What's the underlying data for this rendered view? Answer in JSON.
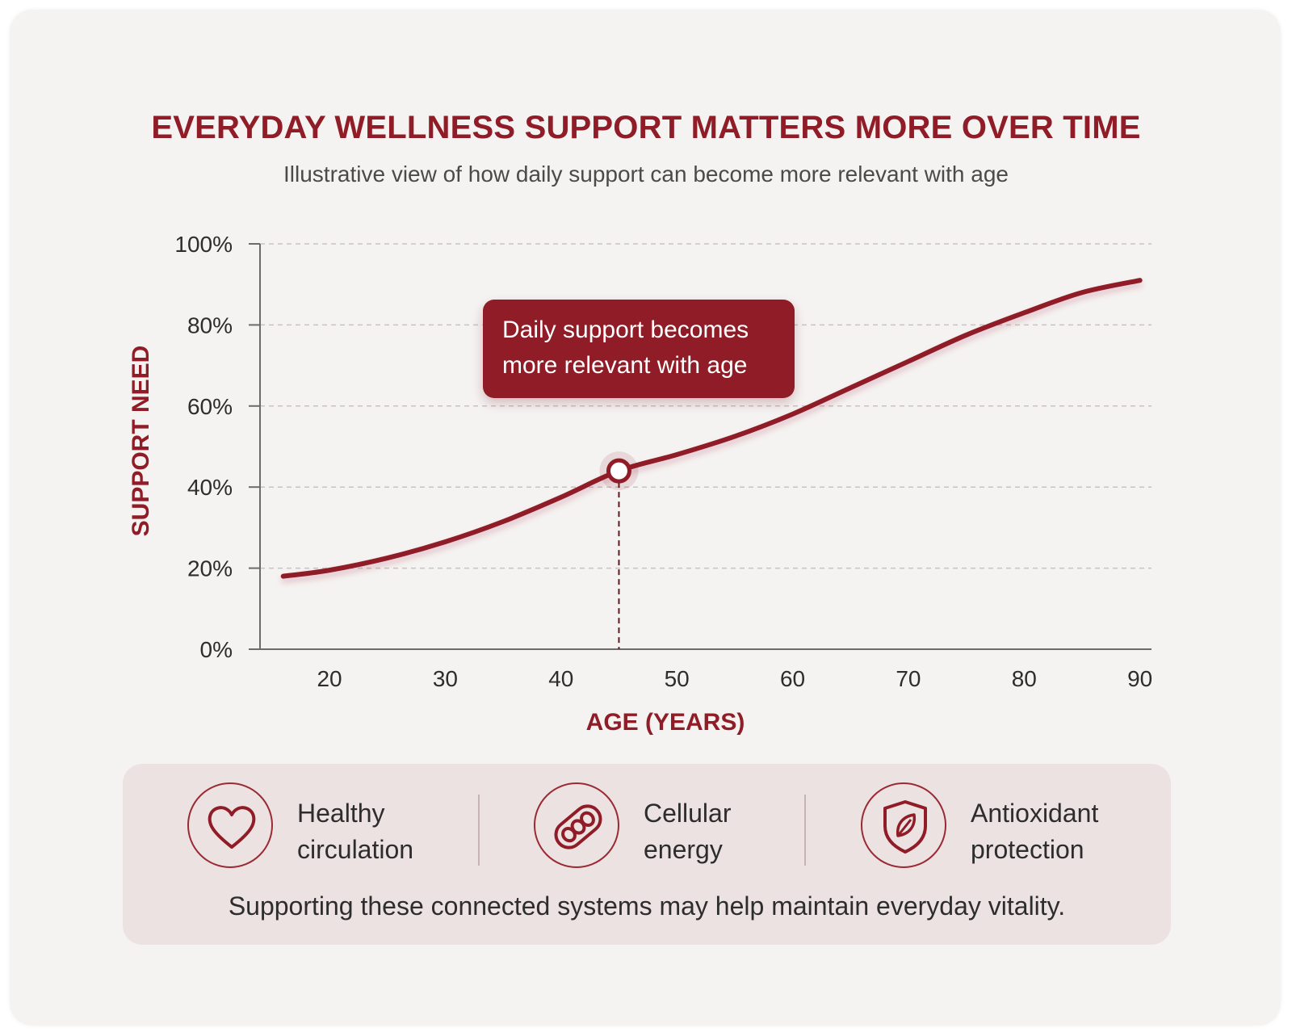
{
  "title": "EVERYDAY WELLNESS SUPPORT MATTERS MORE OVER TIME",
  "subtitle": "Illustrative view of how daily support can become more relevant with age",
  "colors": {
    "accent": "#8f1c26",
    "background": "#f5f3f2",
    "panel": "#ede2e2",
    "text": "#2d2d2d"
  },
  "callout": {
    "line1": "Daily support becomes",
    "line2": "more relevant with age"
  },
  "features": [
    {
      "icon": "heart-icon",
      "line1": "Healthy",
      "line2": "circulation"
    },
    {
      "icon": "mitochondria-icon",
      "line1": "Cellular",
      "line2": "energy"
    },
    {
      "icon": "shield-leaf-icon",
      "line1": "Antioxidant",
      "line2": "protection"
    }
  ],
  "footer": "Supporting these connected systems may help maintain everyday vitality.",
  "chart_data": {
    "type": "line",
    "xlabel": "AGE (YEARS)",
    "ylabel": "SUPPORT NEED",
    "x_ticks": [
      20,
      30,
      40,
      50,
      60,
      70,
      80,
      90
    ],
    "y_ticks": [
      0,
      20,
      40,
      60,
      80,
      100
    ],
    "y_tick_labels": [
      "0%",
      "20%",
      "40%",
      "60%",
      "80%",
      "100%"
    ],
    "xlim": [
      14,
      91
    ],
    "ylim": [
      0,
      100
    ],
    "grid": true,
    "series": [
      {
        "x": [
          16,
          20,
          25,
          30,
          35,
          40,
          45,
          50,
          55,
          60,
          65,
          70,
          75,
          80,
          85,
          90
        ],
        "y": [
          18,
          19.5,
          22.5,
          26.5,
          31.5,
          37.5,
          44,
          48,
          52.5,
          58,
          64.5,
          71,
          77.5,
          83,
          88,
          91
        ]
      }
    ],
    "highlight_point": {
      "x": 45,
      "y": 44
    }
  }
}
